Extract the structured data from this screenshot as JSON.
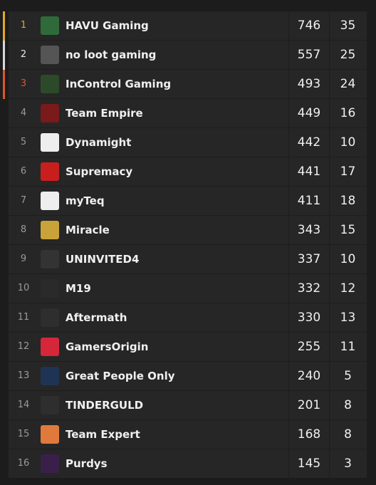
{
  "table": {
    "rows": [
      [
        1,
        "HAVU Gaming",
        746,
        35
      ],
      [
        2,
        "no loot gaming",
        557,
        25
      ],
      [
        3,
        "InControl Gaming",
        493,
        24
      ],
      [
        4,
        "Team Empire",
        449,
        16
      ],
      [
        5,
        "Dynamight",
        442,
        10
      ],
      [
        6,
        "Supremacy",
        441,
        17
      ],
      [
        7,
        "myTeq",
        411,
        18
      ],
      [
        8,
        "Miracle",
        343,
        15
      ],
      [
        9,
        "UNINVITED4",
        337,
        10
      ],
      [
        10,
        "M19",
        332,
        12
      ],
      [
        11,
        "Aftermath",
        330,
        13
      ],
      [
        12,
        "GamersOrigin",
        255,
        11
      ],
      [
        13,
        "Great People Only",
        240,
        5
      ],
      [
        14,
        "TINDERGULD",
        201,
        8
      ],
      [
        15,
        "Team Expert",
        168,
        8
      ],
      [
        16,
        "Purdys",
        145,
        3
      ]
    ]
  }
}
